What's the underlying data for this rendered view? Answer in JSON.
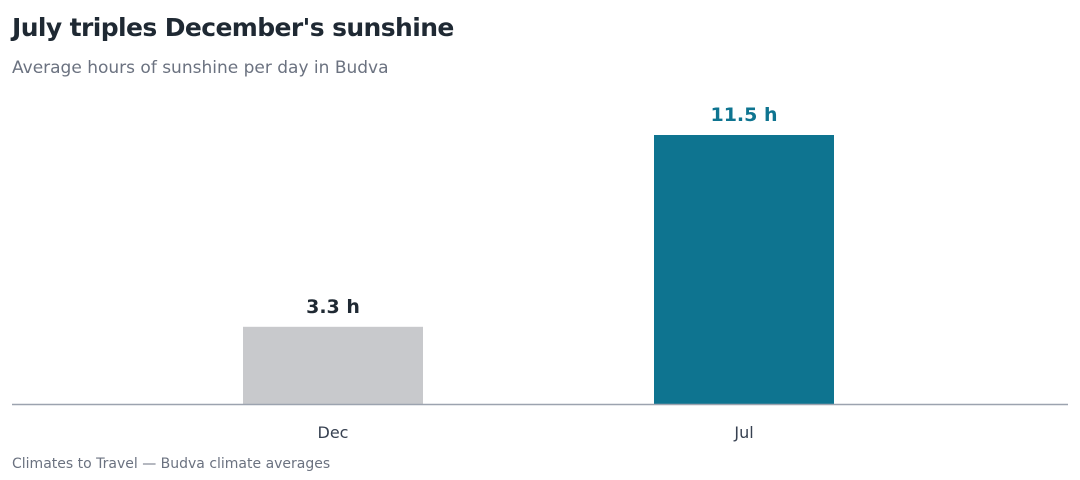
{
  "title": "July triples December's sunshine",
  "subtitle": "Average hours of sunshine per day in Budva",
  "source": "Climates to Travel — Budva climate averages",
  "colors": {
    "muted_bar": "#c8c9cc",
    "highlight_bar": "#0e7490",
    "muted_label": "#1f2933",
    "highlight_label": "#0e7490",
    "axis": "#9ca3af"
  },
  "chart_data": {
    "type": "bar",
    "categories": [
      "Dec",
      "Jul"
    ],
    "values": [
      3.3,
      11.5
    ],
    "value_labels": [
      "3.3 h",
      "11.5 h"
    ],
    "highlight": "Jul",
    "ylim": [
      0,
      11.5
    ],
    "xlabel": "",
    "ylabel": "",
    "grid": false,
    "legend": "none"
  }
}
